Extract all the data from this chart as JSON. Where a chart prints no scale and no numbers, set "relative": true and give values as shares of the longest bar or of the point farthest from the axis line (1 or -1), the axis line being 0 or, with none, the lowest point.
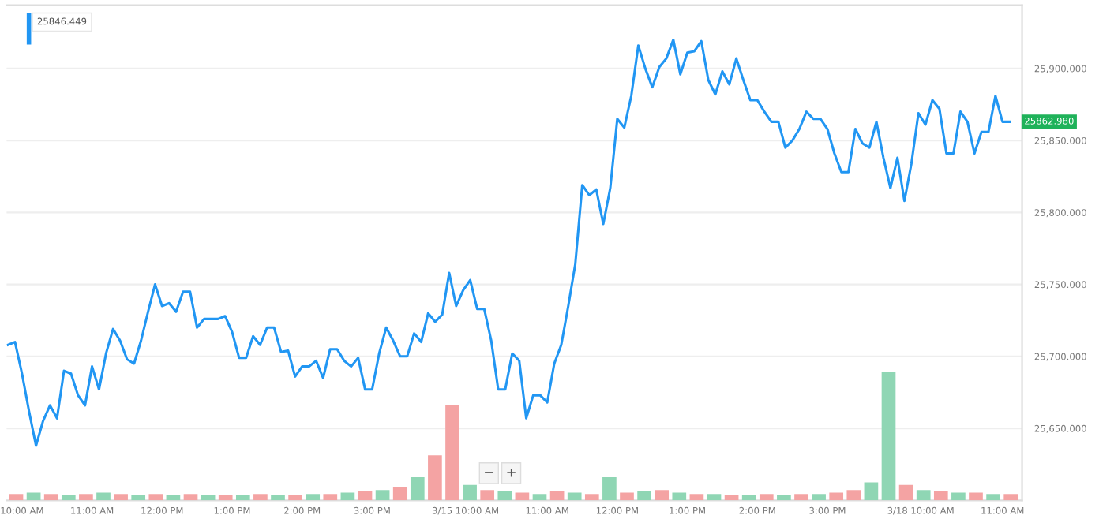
{
  "chart_data": [
    {
      "type": "line",
      "annotations": [
        "25846.449",
        "25862.980",
        "−",
        "+"
      ],
      "categories": [
        null,
        null,
        "10:00 AM",
        null,
        null,
        null,
        null,
        null,
        null,
        null,
        null,
        null,
        "11:00 AM",
        null,
        null,
        null,
        null,
        null,
        null,
        null,
        null,
        null,
        "12:00 PM",
        null,
        null,
        null,
        null,
        null,
        null,
        null,
        null,
        null,
        "1:00 PM",
        null,
        null,
        null,
        null,
        null,
        null,
        null,
        null,
        null,
        "2:00 PM",
        null,
        null,
        null,
        null,
        null,
        null,
        null,
        null,
        null,
        "3:00 PM",
        null,
        null,
        null,
        null,
        null,
        null,
        null,
        null,
        null,
        "3/15",
        null,
        null,
        null,
        null,
        "10:00 AM",
        null,
        null,
        null,
        null,
        null,
        null,
        null,
        null,
        null,
        "11:00 AM",
        null,
        null,
        null,
        null,
        null,
        null,
        null,
        null,
        null,
        "12:00 PM",
        null,
        null,
        null,
        null,
        null,
        null,
        null,
        null,
        null,
        "1:00 PM",
        null,
        null,
        null,
        null,
        null,
        null,
        null,
        null,
        null,
        "2:00 PM",
        null,
        null,
        null,
        null,
        null,
        null,
        null,
        null,
        null,
        "3:00 PM",
        null,
        null,
        null,
        null,
        null,
        null,
        null,
        null,
        null,
        "3/18",
        null,
        null,
        null,
        null,
        "10:00 AM",
        null,
        null,
        null,
        null,
        null,
        null,
        null,
        null,
        null,
        "11:00 AM",
        null
      ],
      "series": [
        {
          "color": "#2196f3",
          "values": [
            25708,
            25710,
            25688,
            25662,
            25638,
            25655,
            25666,
            25657,
            25690,
            25688,
            25673,
            25666,
            25693,
            25677,
            25702,
            25719,
            25711,
            25698,
            25695,
            25711,
            25731,
            25750,
            25735,
            25737,
            25731,
            25745,
            25745,
            25720,
            25726,
            25726,
            25726,
            25728,
            25717,
            25699,
            25699,
            25714,
            25708,
            25720,
            25720,
            25703,
            25704,
            25686,
            25693,
            25693,
            25697,
            25685,
            25705,
            25705,
            25697,
            25693,
            25699,
            25677,
            25677,
            25702,
            25720,
            25711,
            25700,
            25700,
            25716,
            25710,
            25730,
            25724,
            25729,
            25758,
            25735,
            25746,
            25753,
            25733,
            25733,
            25711,
            25677,
            25677,
            25702,
            25697,
            25657,
            25673,
            25673,
            25668,
            25695,
            25708,
            25735,
            25764,
            25819,
            25812,
            25816,
            25792,
            25817,
            25865,
            25859,
            25881,
            25916,
            25900,
            25887,
            25901,
            25907,
            25920,
            25896,
            25911,
            25912,
            25919,
            25892,
            25882,
            25898,
            25889,
            25907,
            25892,
            25878,
            25878,
            25870,
            25863,
            25863,
            25845,
            25850,
            25858,
            25870,
            25865,
            25865,
            25858,
            25841,
            25828,
            25828,
            25858,
            25848,
            25845,
            25863,
            25838,
            25817,
            25838,
            25808,
            25834,
            25869,
            25861,
            25878,
            25872,
            25841,
            25841,
            25870,
            25863,
            25841,
            25856,
            25856,
            25881,
            25863,
            25863
          ]
        }
      ],
      "ylim": [
        25600,
        25944
      ],
      "yticks": [
        {
          "value": 25650,
          "label": "25,650.000"
        },
        {
          "value": 25700,
          "label": "25,700.000"
        },
        {
          "value": 25750,
          "label": "25,750.000"
        },
        {
          "value": 25800,
          "label": "25,800.000"
        },
        {
          "value": 25850,
          "label": "25,850.000"
        },
        {
          "value": 25900,
          "label": "25,900.000"
        }
      ],
      "grid": "y"
    },
    {
      "type": "bar",
      "relative": true,
      "categories": [
        null,
        null,
        null,
        null,
        null,
        null,
        null,
        null,
        null,
        null,
        null,
        null,
        null,
        null,
        null,
        null,
        null,
        null,
        null,
        null,
        null,
        null,
        null,
        null,
        null,
        null,
        null,
        null,
        null,
        null,
        null,
        null,
        null,
        null,
        null,
        null,
        null,
        null,
        null,
        null,
        null,
        null,
        null,
        null,
        null,
        null,
        null,
        null,
        null,
        null,
        null,
        null,
        null,
        null,
        null,
        null,
        null,
        null
      ],
      "values": [
        0.05,
        0.06,
        0.05,
        0.04,
        0.05,
        0.06,
        0.05,
        0.04,
        0.05,
        0.04,
        0.05,
        0.04,
        0.04,
        0.04,
        0.05,
        0.04,
        0.04,
        0.05,
        0.05,
        0.06,
        0.07,
        0.08,
        0.1,
        0.18,
        0.35,
        0.74,
        0.12,
        0.08,
        0.07,
        0.06,
        0.05,
        0.07,
        0.06,
        0.05,
        0.18,
        0.06,
        0.07,
        0.08,
        0.06,
        0.05,
        0.05,
        0.04,
        0.04,
        0.05,
        0.04,
        0.05,
        0.05,
        0.06,
        0.08,
        0.14,
        1.0,
        0.12,
        0.08,
        0.07,
        0.06,
        0.06,
        0.05,
        0.05
      ],
      "colors": [
        "#f4a3a3",
        "#8fd6b4",
        "#f4a3a3",
        "#8fd6b4",
        "#f4a3a3",
        "#8fd6b4",
        "#f4a3a3",
        "#8fd6b4",
        "#f4a3a3",
        "#8fd6b4",
        "#f4a3a3",
        "#8fd6b4",
        "#f4a3a3",
        "#8fd6b4",
        "#f4a3a3",
        "#8fd6b4",
        "#f4a3a3",
        "#8fd6b4",
        "#f4a3a3",
        "#8fd6b4",
        "#f4a3a3",
        "#8fd6b4",
        "#f4a3a3",
        "#8fd6b4",
        "#f4a3a3",
        "#f4a3a3",
        "#8fd6b4",
        "#f4a3a3",
        "#8fd6b4",
        "#f4a3a3",
        "#8fd6b4",
        "#f4a3a3",
        "#8fd6b4",
        "#f4a3a3",
        "#8fd6b4",
        "#f4a3a3",
        "#8fd6b4",
        "#f4a3a3",
        "#8fd6b4",
        "#f4a3a3",
        "#8fd6b4",
        "#f4a3a3",
        "#8fd6b4",
        "#f4a3a3",
        "#8fd6b4",
        "#f4a3a3",
        "#8fd6b4",
        "#f4a3a3",
        "#f4a3a3",
        "#8fd6b4",
        "#8fd6b4",
        "#f4a3a3",
        "#8fd6b4",
        "#f4a3a3",
        "#8fd6b4",
        "#f4a3a3",
        "#8fd6b4",
        "#f4a3a3"
      ]
    }
  ]
}
